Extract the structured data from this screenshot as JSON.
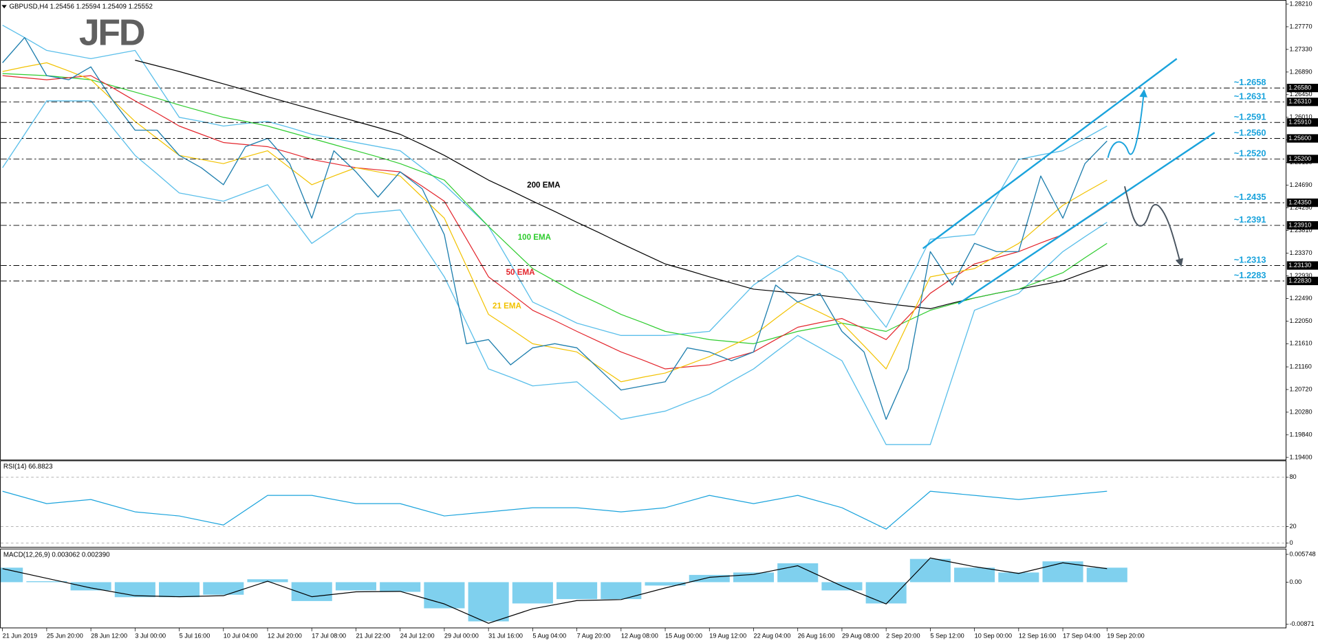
{
  "chart_data": [
    {
      "type": "line",
      "title": "GBPUSD,H4 1.25456 1.25594 1.25409 1.25552",
      "logo": "JFD",
      "categories": [
        "21 Jun 2019",
        null,
        "25 Jun 20:00",
        null,
        "28 Jun 12:00",
        null,
        "3 Jul 00:00",
        null,
        "5 Jul 16:00",
        null,
        "10 Jul 04:00",
        null,
        "12 Jul 20:00",
        null,
        "17 Jul 08:00",
        null,
        "21 Jul 22:00",
        null,
        "24 Jul 12:00",
        null,
        "29 Jul 00:00",
        null,
        "31 Jul 16:00",
        null,
        "5 Aug 04:00",
        null,
        "7 Aug 20:00",
        null,
        "12 Aug 08:00",
        null,
        "15 Aug 00:00",
        null,
        "19 Aug 12:00",
        null,
        "22 Aug 04:00",
        null,
        "26 Aug 16:00",
        null,
        "29 Aug 08:00",
        null,
        "2 Sep 20:00",
        null,
        "5 Sep 12:00",
        null,
        "10 Sep 00:00",
        null,
        "12 Sep 16:00",
        null,
        "17 Sep 04:00",
        null,
        "19 Sep 20:00"
      ],
      "ylim": [
        1.1935,
        1.2829
      ],
      "yticks": [
        {
          "value": 1.194,
          "label": "1.19400"
        },
        {
          "value": 1.1984,
          "label": "1.19840"
        },
        {
          "value": 1.2028,
          "label": "1.20280"
        },
        {
          "value": 1.2072,
          "label": "1.20720"
        },
        {
          "value": 1.2116,
          "label": "1.21160"
        },
        {
          "value": 1.2161,
          "label": "1.21610"
        },
        {
          "value": 1.2205,
          "label": "1.22050"
        },
        {
          "value": 1.2249,
          "label": "1.22490"
        },
        {
          "value": 1.2293,
          "label": "1.22930"
        },
        {
          "value": 1.2337,
          "label": "1.23370"
        },
        {
          "value": 1.2381,
          "label": "1.23810"
        },
        {
          "value": 1.2425,
          "label": "1.24250"
        },
        {
          "value": 1.2469,
          "label": "1.24690"
        },
        {
          "value": 1.2513,
          "label": "1.25130"
        },
        {
          "value": 1.2557,
          "label": "1.25570"
        },
        {
          "value": 1.2601,
          "label": "1.26010"
        },
        {
          "value": 1.2645,
          "label": "1.26450"
        },
        {
          "value": 1.2689,
          "label": "1.26890"
        },
        {
          "value": 1.2733,
          "label": "1.27330"
        },
        {
          "value": 1.2777,
          "label": "1.27770"
        },
        {
          "value": 1.2821,
          "label": "1.28210"
        }
      ],
      "series": [
        {
          "color": "#5bbfea",
          "values": [
            1.278,
            1.2756,
            1.2731,
            1.2723,
            1.2715,
            1.2723,
            1.2731,
            1.2666,
            1.2601,
            1.2593,
            1.2584,
            1.2589,
            1.2593,
            1.2581,
            1.2568,
            1.256,
            1.2552,
            1.2544,
            1.2536,
            1.2503,
            1.247,
            1.243,
            1.2389,
            1.2316,
            1.2242,
            1.2222,
            1.2201,
            1.2189,
            1.2177,
            1.2177,
            1.2177,
            1.2181,
            1.2185,
            1.223,
            1.2275,
            1.2304,
            1.2332,
            1.2316,
            1.2299,
            1.2246,
            1.2193,
            1.2279,
            1.2364,
            1.2369,
            1.2373,
            1.2446,
            1.2519,
            1.2528,
            1.2536,
            1.256,
            1.2584
          ]
        },
        {
          "color": "#5bbfea",
          "values": [
            1.2503,
            1.2568,
            1.2633,
            1.2633,
            1.2633,
            1.258,
            1.2527,
            1.2491,
            1.2454,
            1.2446,
            1.2438,
            1.2454,
            1.247,
            1.2413,
            1.2356,
            1.2385,
            1.2413,
            1.2417,
            1.2421,
            1.2356,
            1.2291,
            1.2202,
            1.2112,
            1.2096,
            1.2079,
            1.2083,
            1.2087,
            1.2051,
            1.2014,
            1.2022,
            1.203,
            1.2047,
            1.2063,
            1.2088,
            1.2112,
            1.2145,
            1.2177,
            1.2153,
            1.2128,
            1.2047,
            1.1965,
            1.1965,
            1.1965,
            1.2096,
            1.2226,
            1.2243,
            1.2259,
            1.23,
            1.234,
            1.2369,
            1.2397
          ]
        },
        {
          "name": "200 EMA",
          "color": "#000000",
          "values": [
            null,
            null,
            null,
            null,
            null,
            null,
            1.2712,
            1.2701,
            1.269,
            1.2678,
            1.2666,
            1.2654,
            1.2641,
            1.2629,
            1.2617,
            1.2605,
            1.2593,
            1.2581,
            1.2568,
            1.2548,
            1.2527,
            1.2503,
            1.2479,
            1.2459,
            1.2438,
            1.2418,
            1.2397,
            1.2377,
            1.2356,
            1.2336,
            1.2316,
            1.2304,
            1.2291,
            1.2279,
            1.2267,
            1.2263,
            1.2259,
            1.2255,
            1.225,
            1.2245,
            1.2239,
            1.2234,
            1.2229,
            1.224,
            1.225,
            1.2259,
            1.2267,
            1.2275,
            1.2283,
            1.2299,
            1.2314
          ]
        },
        {
          "name": "100 EMA",
          "color": "#2ecc2e",
          "values": [
            1.2686,
            1.2684,
            1.2682,
            1.2678,
            1.2674,
            1.2662,
            1.265,
            1.2638,
            1.2625,
            1.2613,
            1.2601,
            1.2593,
            1.2584,
            1.2572,
            1.256,
            1.2548,
            1.2536,
            1.2524,
            1.2511,
            1.2495,
            1.2479,
            1.2434,
            1.2389,
            1.2348,
            1.2307,
            1.2283,
            1.2259,
            1.2239,
            1.2218,
            1.2202,
            1.2185,
            1.2177,
            1.2169,
            1.2165,
            1.2161,
            1.2173,
            1.2185,
            1.2193,
            1.2201,
            1.2193,
            1.2185,
            1.2206,
            1.2226,
            1.2238,
            1.225,
            1.2259,
            1.2267,
            1.2283,
            1.2299,
            1.2328,
            1.2356
          ]
        },
        {
          "name": "50 EMA",
          "color": "#e3242b",
          "values": [
            1.2682,
            1.2678,
            1.2674,
            1.2678,
            1.2682,
            1.2658,
            1.2633,
            1.2609,
            1.2584,
            1.2568,
            1.2552,
            1.2548,
            1.2544,
            1.2532,
            1.2519,
            1.2511,
            1.2503,
            1.2499,
            1.2495,
            1.2467,
            1.2438,
            1.2365,
            1.2291,
            1.2259,
            1.2226,
            1.2206,
            1.2185,
            1.2165,
            1.2145,
            1.2129,
            1.2112,
            1.2116,
            1.212,
            1.2133,
            1.2145,
            1.2169,
            1.2193,
            1.2202,
            1.221,
            1.219,
            1.2169,
            1.2214,
            1.2259,
            1.2288,
            1.2316,
            1.2328,
            1.234,
            1.2357,
            1.2373,
            1.2402,
            1.243
          ]
        },
        {
          "name": "21 EMA",
          "color": "#f2c200",
          "values": [
            1.269,
            1.2699,
            1.2707,
            1.2691,
            1.2674,
            1.2634,
            1.2593,
            1.256,
            1.2527,
            1.2519,
            1.2511,
            1.2524,
            1.2536,
            1.2503,
            1.247,
            1.2487,
            1.2503,
            1.2495,
            1.2487,
            1.2446,
            1.2405,
            1.2312,
            1.2218,
            1.219,
            1.2161,
            1.2153,
            1.2145,
            1.2116,
            1.2087,
            1.2096,
            1.2104,
            1.212,
            1.2136,
            1.2157,
            1.2177,
            1.221,
            1.2242,
            1.2222,
            1.2201,
            1.2157,
            1.2112,
            1.2202,
            1.2291,
            1.2299,
            1.2307,
            1.2332,
            1.2356,
            1.2393,
            1.243,
            1.2455,
            1.2479
          ]
        },
        {
          "color": "#1f7fae",
          "values": [
            1.2707,
            1.2756,
            1.2682,
            1.2674,
            1.2699,
            1.2633,
            1.2576,
            1.2576,
            1.2527,
            1.2503,
            1.247,
            1.2544,
            1.256,
            1.2511,
            1.2405,
            1.2536,
            1.2495,
            1.2446,
            1.2495,
            1.2462,
            1.2373,
            1.2161,
            1.2169,
            1.212,
            1.2153,
            1.2161,
            1.2153,
            1.2112,
            1.2071,
            1.2079,
            1.2087,
            1.2153,
            1.2145,
            1.2128,
            1.2145,
            1.2275,
            1.2242,
            1.2259,
            1.2185,
            1.2145,
            1.2014,
            1.2112,
            1.234,
            1.2275,
            1.2356,
            1.234,
            1.234,
            1.2487,
            1.2405,
            1.2511,
            1.2555
          ]
        }
      ],
      "levels": [
        {
          "value": 1.2658,
          "label": "~1.2658",
          "axis_label": "1.26580"
        },
        {
          "value": 1.2631,
          "label": "~1.2631",
          "axis_label": "1.26310"
        },
        {
          "value": 1.2591,
          "label": "~1.2591",
          "axis_label": "1.25910"
        },
        {
          "value": 1.256,
          "label": "~1.2560",
          "axis_label": "1.25600"
        },
        {
          "value": 1.252,
          "label": "~1.2520",
          "axis_label": "1.25200"
        },
        {
          "value": 1.2435,
          "label": "~1.2435",
          "axis_label": "1.24350"
        },
        {
          "value": 1.2391,
          "label": "~1.2391",
          "axis_label": "1.23910"
        },
        {
          "value": 1.2313,
          "label": "~1.2313",
          "axis_label": "1.23130"
        },
        {
          "value": 1.2283,
          "label": "~1.2283",
          "axis_label": "1.22830"
        }
      ],
      "level_color": "#1aa3dc"
    },
    {
      "type": "line",
      "title": "RSI(14) 66.8823",
      "ylim": [
        0,
        100
      ],
      "yticks": [
        0,
        20,
        80
      ],
      "grid": true,
      "color": "#1aa3dc",
      "values": [
        63,
        48,
        53,
        38,
        33,
        22,
        58,
        58,
        48,
        48,
        33,
        38,
        43,
        43,
        38,
        43,
        58,
        48,
        58,
        43,
        17,
        63,
        58,
        53,
        58,
        63
      ]
    },
    {
      "type": "macd",
      "title": "MACD(12,26,9) 0.003062 0.002390",
      "ylim": [
        -0.00945,
        0.00686
      ],
      "yticks": [
        -0.00871,
        {
          "value": 0,
          "label": "0.00"
        },
        0.005748
      ],
      "histogram": {
        "color": "#7fd0ee",
        "values": [
          0.003,
          0.0002,
          -0.0017,
          -0.0031,
          -0.0031,
          -0.0026,
          0.0006,
          -0.0039,
          -0.0017,
          -0.002,
          -0.0054,
          -0.0081,
          -0.0044,
          -0.0035,
          -0.0035,
          -0.0007,
          0.0015,
          0.002,
          0.0039,
          -0.0017,
          -0.0044,
          0.0048,
          0.003,
          0.002,
          0.0043,
          0.003
        ]
      },
      "signal": {
        "color": "#000000",
        "values": [
          0.0028,
          0.0008,
          -0.0012,
          -0.0028,
          -0.003,
          -0.0028,
          0.0002,
          -0.003,
          -0.002,
          -0.0019,
          -0.0045,
          -0.0085,
          -0.0055,
          -0.0038,
          -0.0036,
          -0.0012,
          0.001,
          0.0016,
          0.0034,
          -0.0008,
          -0.0045,
          0.005,
          0.0032,
          0.0018,
          0.004,
          0.0028
        ]
      }
    }
  ]
}
